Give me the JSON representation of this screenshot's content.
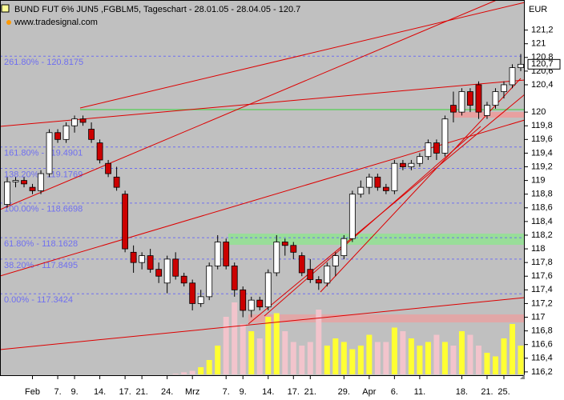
{
  "chart_data": {
    "type": "candlestick",
    "title": "BUND FUT 6% JUN5 ,FGBLM5, Tageschart - 28.01.05 - 28.04.05 - 120.7",
    "subtitle": "www.tradesignal.com",
    "y_axis_label": "EUR",
    "categories": [
      null,
      null,
      null,
      "Feb",
      null,
      null,
      "7.",
      null,
      "9.",
      null,
      null,
      "14.",
      null,
      null,
      "17.",
      null,
      "21.",
      null,
      null,
      "24.",
      null,
      null,
      "Mrz",
      null,
      null,
      null,
      "7.",
      null,
      "9.",
      null,
      null,
      "14.",
      null,
      null,
      "17.",
      null,
      "21.",
      null,
      null,
      null,
      "29.",
      null,
      null,
      "Apr",
      null,
      null,
      "6.",
      null,
      null,
      "11.",
      null,
      null,
      null,
      null,
      "18.",
      null,
      null,
      "21.",
      null,
      "25.",
      null,
      null
    ],
    "open": [
      118.65,
      118.98,
      119.0,
      118.9,
      118.85,
      119.1,
      119.7,
      119.6,
      119.8,
      119.9,
      119.75,
      119.55,
      119.25,
      119.05,
      118.8,
      117.95,
      117.8,
      117.9,
      117.7,
      117.5,
      117.85,
      117.6,
      117.5,
      117.2,
      117.3,
      117.75,
      118.1,
      117.75,
      117.4,
      117.1,
      117.25,
      117.15,
      117.65,
      118.1,
      118.05,
      117.9,
      117.7,
      117.55,
      117.5,
      117.75,
      117.9,
      118.15,
      118.8,
      118.9,
      119.05,
      118.9,
      118.85,
      119.25,
      119.2,
      119.25,
      119.35,
      119.55,
      119.4,
      120.1,
      120.0,
      120.3,
      120.4,
      119.95,
      120.1,
      120.3,
      120.4,
      120.65
    ],
    "high": [
      119.05,
      119.05,
      119.05,
      118.95,
      119.15,
      119.75,
      119.75,
      119.85,
      119.95,
      119.95,
      119.85,
      119.6,
      119.3,
      119.2,
      118.85,
      118.05,
      117.95,
      118.0,
      117.8,
      117.9,
      117.95,
      117.65,
      117.55,
      117.4,
      117.8,
      118.2,
      118.15,
      117.8,
      117.45,
      117.3,
      117.3,
      117.7,
      118.2,
      118.15,
      118.1,
      117.95,
      117.85,
      117.6,
      117.8,
      117.95,
      118.2,
      118.85,
      119.0,
      119.1,
      119.1,
      118.95,
      119.3,
      119.3,
      119.3,
      119.4,
      119.6,
      119.6,
      119.95,
      120.3,
      120.35,
      120.35,
      120.45,
      120.15,
      120.35,
      120.45,
      120.7,
      120.85
    ],
    "low": [
      118.6,
      118.9,
      118.9,
      118.8,
      118.8,
      119.05,
      119.55,
      119.55,
      119.7,
      119.8,
      119.55,
      119.25,
      119.05,
      118.85,
      117.95,
      117.65,
      117.7,
      117.65,
      117.5,
      117.35,
      117.55,
      117.45,
      117.1,
      117.15,
      117.25,
      117.7,
      117.7,
      117.3,
      117.0,
      117.0,
      117.1,
      117.1,
      117.6,
      117.9,
      117.85,
      117.6,
      117.5,
      117.4,
      117.45,
      117.6,
      117.85,
      118.1,
      118.75,
      118.8,
      118.85,
      118.8,
      118.8,
      119.15,
      119.15,
      119.2,
      119.3,
      119.3,
      119.35,
      119.85,
      119.95,
      120.0,
      119.9,
      119.9,
      120.05,
      120.2,
      120.35,
      120.6
    ],
    "close": [
      118.98,
      119.0,
      118.95,
      118.85,
      119.1,
      119.7,
      119.6,
      119.8,
      119.9,
      119.85,
      119.6,
      119.3,
      119.1,
      118.9,
      118.0,
      117.8,
      117.9,
      117.7,
      117.6,
      117.85,
      117.6,
      117.5,
      117.2,
      117.3,
      117.75,
      118.1,
      117.75,
      117.4,
      117.1,
      117.25,
      117.15,
      117.65,
      118.1,
      118.05,
      117.95,
      117.65,
      117.55,
      117.5,
      117.75,
      117.9,
      118.15,
      118.8,
      118.9,
      119.05,
      118.9,
      118.85,
      119.25,
      119.2,
      119.25,
      119.35,
      119.55,
      119.4,
      119.9,
      120.0,
      120.3,
      120.1,
      120.0,
      120.1,
      120.3,
      120.4,
      120.65,
      120.7
    ],
    "volume": [
      null,
      null,
      null,
      null,
      null,
      null,
      null,
      null,
      null,
      null,
      null,
      null,
      null,
      null,
      null,
      null,
      null,
      null,
      null,
      null,
      1,
      3,
      5,
      10,
      20,
      40,
      80,
      100,
      70,
      60,
      50,
      80,
      85,
      60,
      45,
      40,
      45,
      90,
      40,
      50,
      45,
      35,
      40,
      55,
      45,
      45,
      65,
      60,
      50,
      40,
      45,
      55,
      45,
      40,
      60,
      55,
      40,
      30,
      25,
      50,
      70,
      40
    ],
    "volume_ylim": [
      0,
      100
    ],
    "colors": {
      "up": "#ffffff",
      "down": "#cc0000",
      "volume_up": "#ffff33",
      "volume_down": "#f2c4cc",
      "fib": "#6f6ff0"
    },
    "ylim": [
      116.14,
      121.64
    ],
    "yticks": [
      {
        "value": 116.2,
        "label": "116,2"
      },
      {
        "value": 116.4,
        "label": "116,4"
      },
      {
        "value": 116.6,
        "label": "116,6"
      },
      {
        "value": 116.8,
        "label": "116,8"
      },
      117,
      {
        "value": 117.2,
        "label": "117,2"
      },
      {
        "value": 117.4,
        "label": "117,4"
      },
      {
        "value": 117.6,
        "label": "117,6"
      },
      {
        "value": 117.8,
        "label": "117,8"
      },
      118,
      {
        "value": 118.2,
        "label": "118,2"
      },
      {
        "value": 118.4,
        "label": "118,4"
      },
      {
        "value": 118.6,
        "label": "118,6"
      },
      {
        "value": 118.8,
        "label": "118,8"
      },
      119,
      {
        "value": 119.2,
        "label": "119,2"
      },
      {
        "value": 119.4,
        "label": "119,4"
      },
      {
        "value": 119.6,
        "label": "119,6"
      },
      {
        "value": 119.8,
        "label": "119,8"
      },
      120,
      {
        "value": 120.4,
        "label": "120,4"
      },
      {
        "value": 120.6,
        "label": "120,6"
      },
      {
        "value": 120.8,
        "label": "120,8"
      },
      121,
      {
        "value": 121.2,
        "label": "121,2"
      }
    ],
    "last_price": {
      "value": 120.7,
      "label": "120,7"
    },
    "fib_levels": [
      {
        "value": 120.8175,
        "label": "261.80% - 120.8175"
      },
      {
        "value": 119.4901,
        "label": "161.80% - 119.4901"
      },
      {
        "value": 119.1769,
        "label": "138.20% - 119.1769"
      },
      {
        "value": 118.6698,
        "label": "100.00% - 118.6698"
      },
      {
        "value": 118.1628,
        "label": "61.80% - 118.1628"
      },
      {
        "value": 117.8495,
        "label": "38.20% - 117.8495"
      },
      {
        "value": 117.3424,
        "label": "0.00% - 117.3424"
      }
    ]
  }
}
